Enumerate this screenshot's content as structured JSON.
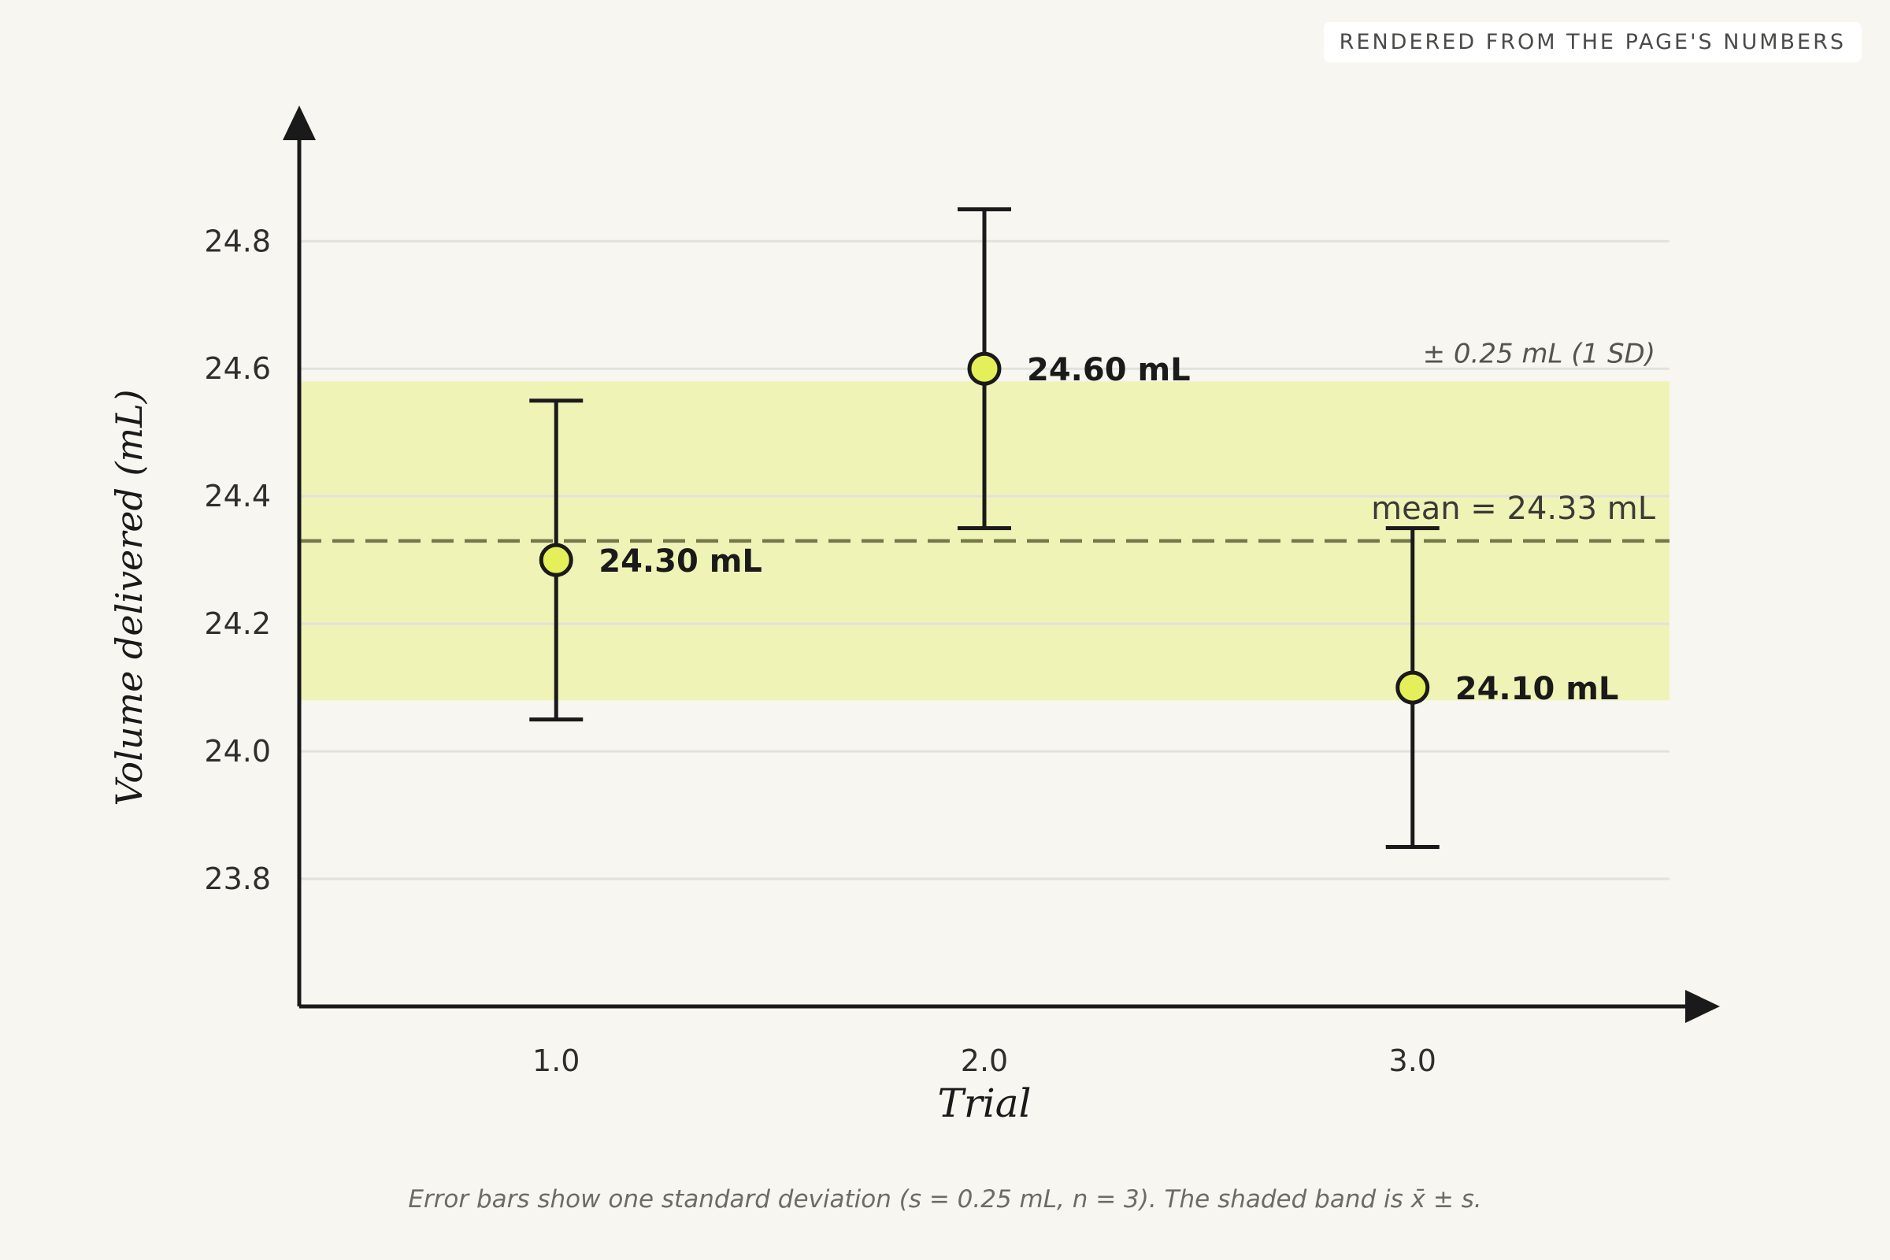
{
  "badge": "RENDERED FROM THE PAGE'S NUMBERS",
  "caption": "Error bars show one standard deviation (s = 0.25 mL, n = 3). The shaded band is x̄ ± s.",
  "colors": {
    "background": "#f7f6f1",
    "band": "#f0f3b6",
    "marker_fill": "#e4ef5a",
    "ink": "#1a1a1a",
    "mean_line": "#75784a",
    "grid": "#e2e1dc"
  },
  "chart_data": {
    "type": "scatter",
    "xlabel": "Trial",
    "ylabel": "Volume delivered (mL)",
    "xlim": [
      0.4,
      3.6
    ],
    "ylim": [
      23.6,
      25.03
    ],
    "x_ticks": [
      1.0,
      2.0,
      3.0
    ],
    "x_tick_labels": [
      "1.0",
      "2.0",
      "3.0"
    ],
    "y_ticks": [
      23.8,
      24.0,
      24.2,
      24.4,
      24.6,
      24.8
    ],
    "y_tick_labels": [
      "23.8",
      "24.0",
      "24.2",
      "24.4",
      "24.6",
      "24.8"
    ],
    "grid": true,
    "points": [
      {
        "x": 1.0,
        "y": 24.3,
        "error": 0.25,
        "label": "24.30 mL"
      },
      {
        "x": 2.0,
        "y": 24.6,
        "error": 0.25,
        "label": "24.60 mL"
      },
      {
        "x": 3.0,
        "y": 24.1,
        "error": 0.25,
        "label": "24.10 mL"
      }
    ],
    "mean": {
      "value": 24.33,
      "label": "mean = 24.33 mL"
    },
    "band": {
      "low": 24.08,
      "high": 24.58,
      "label": "± 0.25 mL (1 SD)"
    }
  }
}
